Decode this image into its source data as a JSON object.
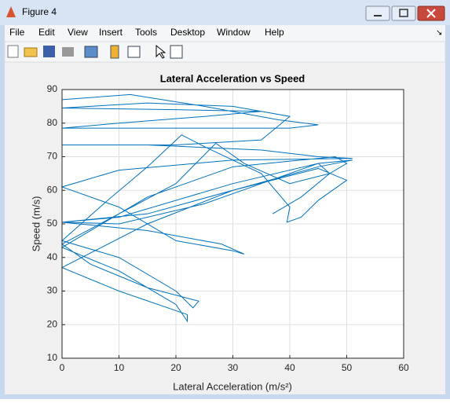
{
  "window": {
    "title": "Figure 4",
    "menu": [
      "File",
      "Edit",
      "View",
      "Insert",
      "Tools",
      "Desktop",
      "Window",
      "Help"
    ]
  },
  "chart_data": {
    "type": "line",
    "title": "Lateral Acceleration vs Speed",
    "x_label": "Lateral Acceleration (m/s²)",
    "y_label": "Speed (m/s)",
    "xlim": [
      0,
      60
    ],
    "ylim": [
      10,
      90
    ],
    "xticks": [
      0,
      10,
      20,
      30,
      40,
      50,
      60
    ],
    "yticks": [
      10,
      20,
      30,
      40,
      50,
      60,
      70,
      80,
      90
    ],
    "grid": true,
    "series": [
      {
        "color": "#0072bd",
        "x": [
          0,
          12,
          25,
          38,
          45,
          40,
          20,
          0,
          10,
          25,
          35,
          20,
          0,
          15,
          30,
          40,
          35,
          20,
          0,
          15,
          35,
          45,
          51,
          30,
          10,
          0,
          10,
          20,
          30,
          32,
          28,
          15,
          0,
          15,
          30,
          45,
          50,
          45,
          42,
          39.5,
          40,
          35,
          25,
          21,
          15,
          8,
          0,
          10,
          20,
          23,
          24,
          15,
          5,
          0,
          10,
          20,
          27,
          32,
          40,
          47,
          50,
          48,
          30,
          15,
          5,
          0,
          10,
          20,
          22,
          22,
          10,
          0,
          15,
          30,
          45,
          51,
          45,
          35,
          25,
          10,
          0,
          10,
          30,
          45,
          47,
          42,
          37
        ],
        "values": [
          87,
          88.5,
          85,
          81,
          79.5,
          78.5,
          78.5,
          78.5,
          80,
          82,
          83.5,
          84,
          84.5,
          86,
          85,
          82,
          75,
          73.5,
          73.5,
          73.5,
          72,
          70,
          69.5,
          69,
          66,
          61,
          55,
          45,
          42,
          41,
          44,
          48,
          50.5,
          53,
          60,
          66.5,
          63,
          57,
          52,
          50.5,
          55,
          65,
          73,
          76.5,
          67,
          57,
          45,
          40,
          30,
          25,
          27,
          31,
          38,
          44,
          53,
          62,
          74,
          68,
          62,
          65,
          68,
          70,
          67,
          58,
          48,
          43,
          36,
          26,
          21,
          23,
          30,
          37,
          50,
          60,
          67,
          69,
          68,
          62,
          56,
          50,
          50.5,
          52,
          62,
          68,
          65,
          58,
          53
        ]
      }
    ]
  }
}
